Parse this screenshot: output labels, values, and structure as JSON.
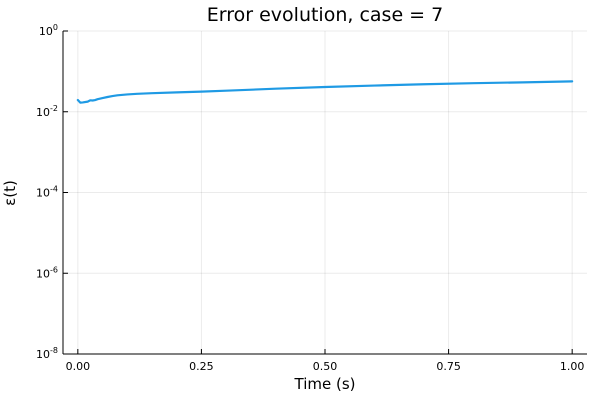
{
  "chart_data": {
    "type": "line",
    "title": "Error evolution, case = 7",
    "xlabel": "Time (s)",
    "ylabel": "ε(t)",
    "xlim": [
      -0.03,
      1.03
    ],
    "ylim_log10": [
      -8,
      0
    ],
    "y_scale": "log",
    "grid": true,
    "x_ticks": [
      0.0,
      0.25,
      0.5,
      0.75,
      1.0
    ],
    "x_tick_labels": [
      "0.00",
      "0.25",
      "0.50",
      "0.75",
      "1.00"
    ],
    "y_ticks_exp": [
      -8,
      -6,
      -4,
      -2,
      0
    ],
    "y_tick_base": "10",
    "y_tick_exps": [
      "-8",
      "-6",
      "-4",
      "-2",
      "0"
    ],
    "series": [
      {
        "color": "#1f9ae4",
        "x": [
          0.0,
          0.005,
          0.01,
          0.02,
          0.025,
          0.03,
          0.035,
          0.04,
          0.05,
          0.06,
          0.07,
          0.08,
          0.1,
          0.12,
          0.15,
          0.2,
          0.25,
          0.3,
          0.4,
          0.5,
          0.6,
          0.7,
          0.8,
          0.9,
          1.0
        ],
        "y": [
          0.0195,
          0.0168,
          0.017,
          0.0178,
          0.0192,
          0.019,
          0.0195,
          0.0205,
          0.0218,
          0.0232,
          0.0245,
          0.0255,
          0.0268,
          0.0278,
          0.0288,
          0.0302,
          0.0315,
          0.0332,
          0.0372,
          0.041,
          0.0445,
          0.048,
          0.051,
          0.0535,
          0.0565
        ]
      }
    ]
  }
}
